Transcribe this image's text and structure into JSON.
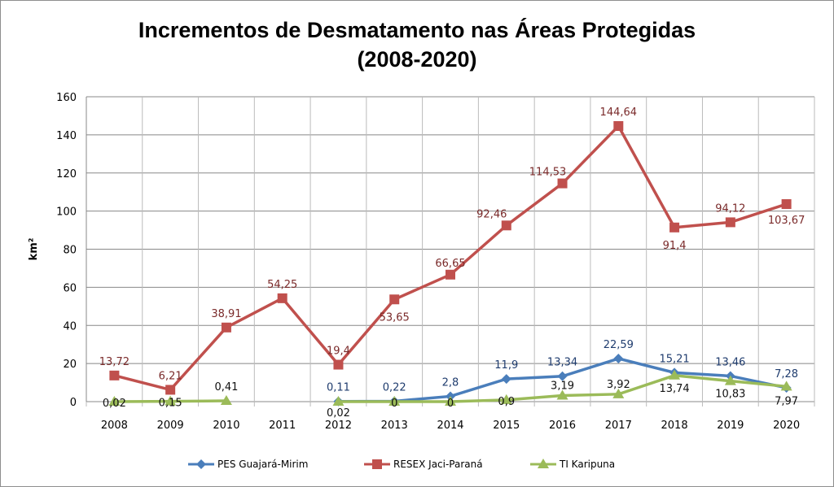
{
  "chart_data": {
    "type": "line",
    "title": [
      "Incrementos de Desmatamento nas Áreas Protegidas",
      "(2008-2020)"
    ],
    "ylabel": "km²",
    "xlabel": "",
    "ylim": [
      0,
      160
    ],
    "yticks": [
      0,
      20,
      40,
      60,
      80,
      100,
      120,
      140,
      160
    ],
    "grid": true,
    "legend": "bottom",
    "categories": [
      "2008",
      "2009",
      "2010",
      "2011",
      "2012",
      "2013",
      "2014",
      "2015",
      "2016",
      "2017",
      "2018",
      "2019",
      "2020"
    ],
    "series": [
      {
        "name": "PES Guajará-Mirim",
        "color": "#4a7ebb",
        "label_color": "#1f3c6e",
        "marker": "diamond",
        "values": [
          null,
          null,
          null,
          null,
          0.11,
          0.22,
          2.8,
          11.9,
          13.34,
          22.59,
          15.21,
          13.46,
          7.28
        ],
        "labels": [
          null,
          null,
          null,
          null,
          "0,11",
          "0,22",
          "2,8",
          "11,9",
          "13,34",
          "22,59",
          "15,21",
          "13,46",
          "7,28"
        ]
      },
      {
        "name": "RESEX Jaci-Paraná",
        "color": "#c0504d",
        "label_color": "#7a2a2a",
        "marker": "square",
        "values": [
          13.72,
          6.21,
          38.91,
          54.25,
          19.4,
          53.65,
          66.65,
          92.46,
          114.53,
          144.64,
          91.4,
          94.12,
          103.67
        ],
        "labels": [
          "13,72",
          "6,21",
          "38,91",
          "54,25",
          "19,4",
          "53,65",
          "66,65",
          "92,46",
          "114,53",
          "144,64",
          "91,4",
          "94,12",
          "103,67"
        ]
      },
      {
        "name": "TI Karipuna",
        "color": "#9bbb59",
        "label_color": "#111111",
        "marker": "triangle",
        "values": [
          0.02,
          0.15,
          0.41,
          null,
          0.02,
          0,
          0,
          0.9,
          3.19,
          3.92,
          13.74,
          10.83,
          7.97
        ],
        "labels": [
          "0,02",
          "0,15",
          "0,41",
          null,
          "0,02",
          "0",
          "0",
          "0,9",
          "3,19",
          "3,92",
          "13,74",
          "10,83",
          "7,97"
        ]
      }
    ]
  }
}
